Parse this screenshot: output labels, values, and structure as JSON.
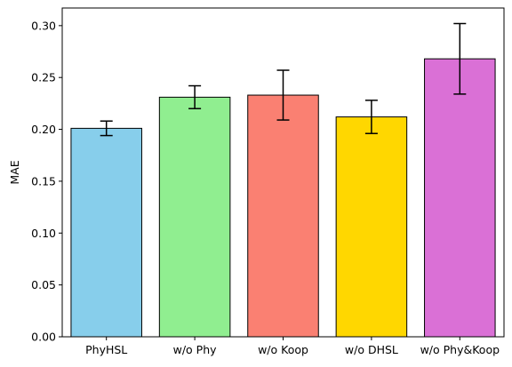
{
  "chart_data": {
    "type": "bar",
    "title": "",
    "xlabel": "",
    "ylabel": "MAE",
    "ylim": [
      0,
      0.317
    ],
    "yticks": [
      "0.00",
      "0.05",
      "0.10",
      "0.15",
      "0.20",
      "0.25",
      "0.30"
    ],
    "grid": false,
    "categories": [
      "PhyHSL",
      "w/o Phy",
      "w/o Koop",
      "w/o DHSL",
      "w/o Phy&Koop"
    ],
    "values": [
      0.201,
      0.231,
      0.233,
      0.212,
      0.268
    ],
    "errors": [
      0.007,
      0.011,
      0.024,
      0.016,
      0.034
    ],
    "colors": [
      "#87CEEB",
      "#90EE90",
      "#FA8072",
      "#FFD700",
      "#DA70D6"
    ],
    "edge_color": "#000000"
  }
}
